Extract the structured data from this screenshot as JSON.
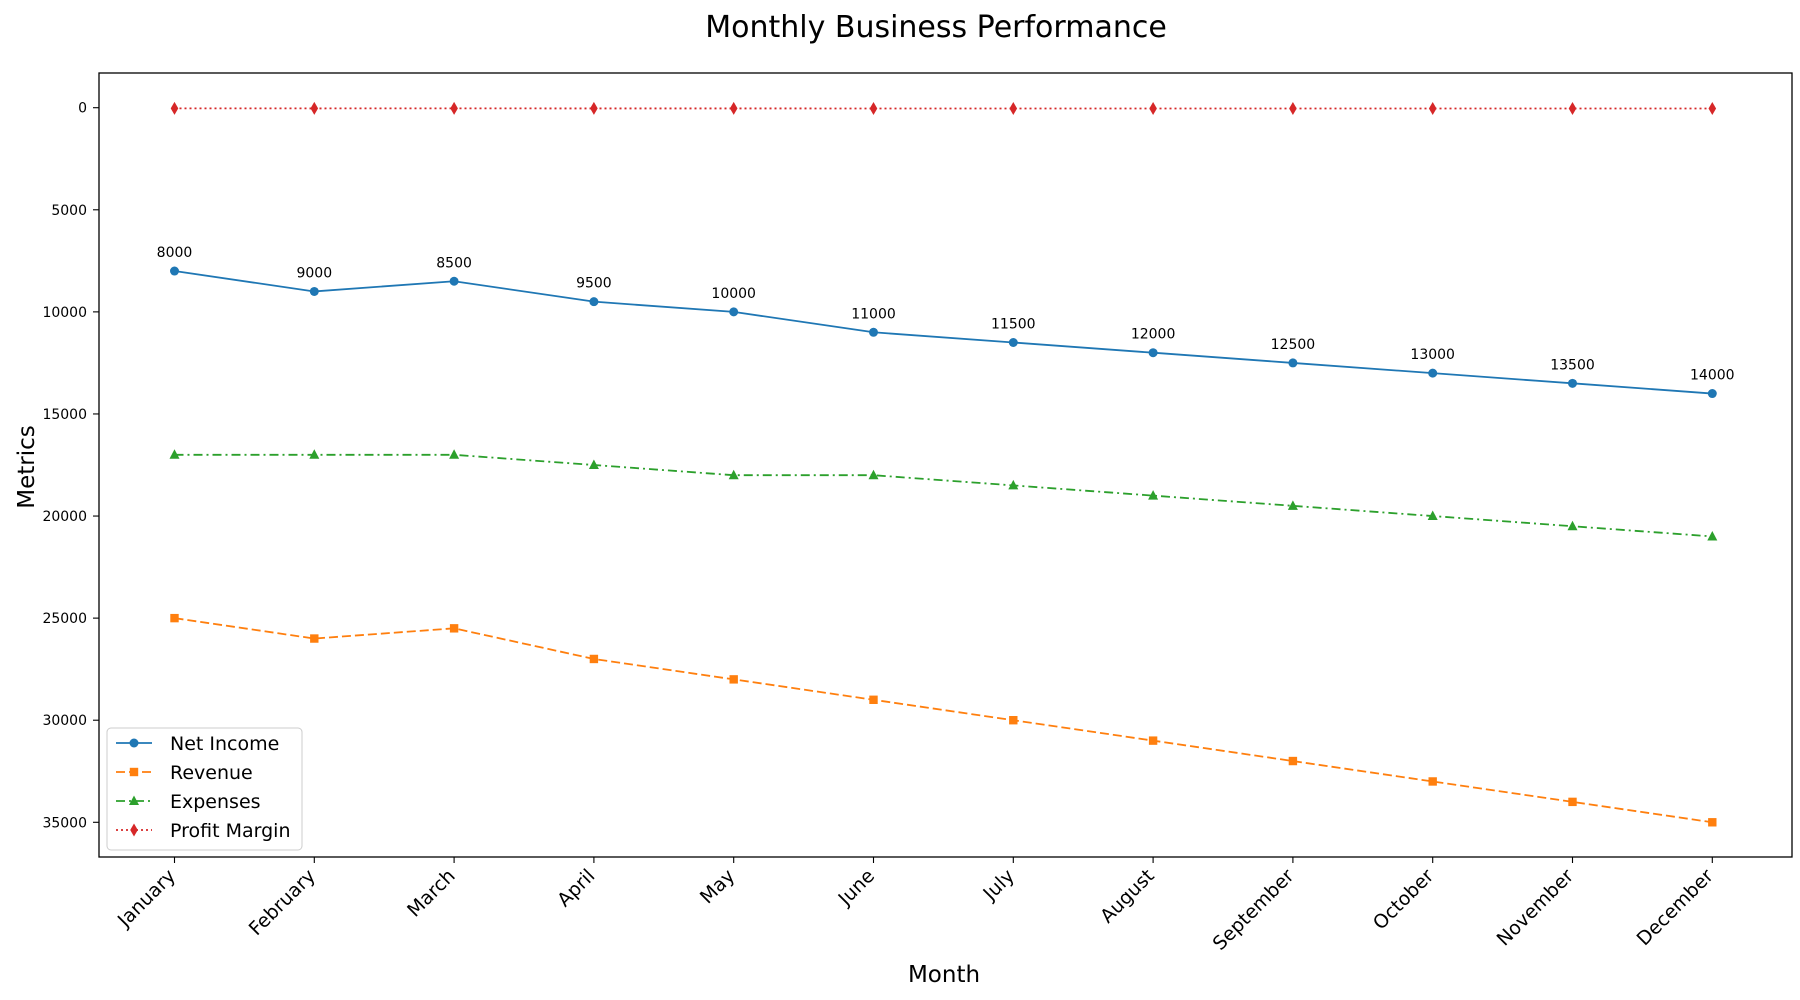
{
  "chart_data": {
    "type": "line",
    "title": "Monthly Business Performance",
    "xlabel": "Month",
    "ylabel": "Metrics",
    "categories": [
      "January",
      "February",
      "March",
      "April",
      "May",
      "June",
      "July",
      "August",
      "September",
      "October",
      "November",
      "December"
    ],
    "y_inverted": true,
    "ylim": [
      -1700,
      36700
    ],
    "yticks": [
      0,
      5000,
      10000,
      15000,
      20000,
      25000,
      30000,
      35000
    ],
    "grid": false,
    "legend_position": "lower-left",
    "series": [
      {
        "name": "Net Income",
        "color": "#1f77b4",
        "marker": "circle",
        "linestyle": "solid",
        "values": [
          8000,
          9000,
          8500,
          9500,
          10000,
          11000,
          11500,
          12000,
          12500,
          13000,
          13500,
          14000
        ],
        "data_labels": true
      },
      {
        "name": "Revenue",
        "color": "#ff7f0e",
        "marker": "square",
        "linestyle": "dashed",
        "values": [
          25000,
          26000,
          25500,
          27000,
          28000,
          29000,
          30000,
          31000,
          32000,
          33000,
          34000,
          35000
        ],
        "data_labels": false
      },
      {
        "name": "Expenses",
        "color": "#2ca02c",
        "marker": "triangle",
        "linestyle": "dashdot",
        "values": [
          17000,
          17000,
          17000,
          17500,
          18000,
          18000,
          18500,
          19000,
          19500,
          20000,
          20500,
          21000
        ],
        "data_labels": false
      },
      {
        "name": "Profit Margin",
        "color": "#d62728",
        "marker": "diamond",
        "linestyle": "dotted",
        "values": [
          32,
          34.6,
          33.3,
          35.2,
          35.7,
          37.9,
          38.3,
          38.7,
          39.1,
          39.4,
          39.7,
          40
        ],
        "data_labels": false
      }
    ]
  }
}
